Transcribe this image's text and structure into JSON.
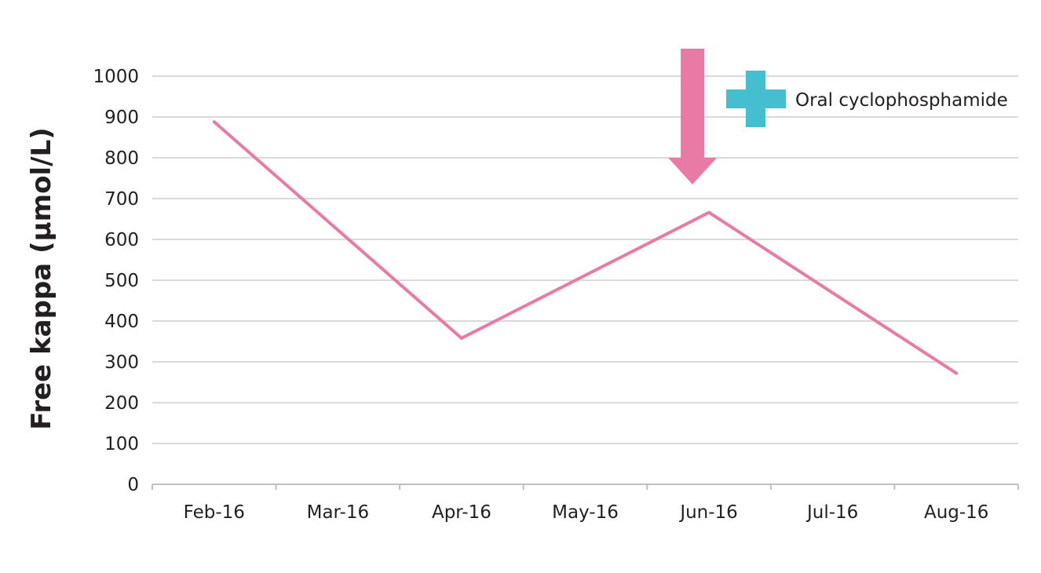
{
  "chart_data": {
    "type": "line",
    "categories": [
      "Feb-16",
      "Mar-16",
      "Apr-16",
      "May-16",
      "Jun-16",
      "Jul-16",
      "Aug-16"
    ],
    "x": [
      "Feb-16",
      "Apr-16",
      "Jun-16",
      "Aug-16"
    ],
    "series": [
      {
        "values": [
          888,
          358,
          666,
          272
        ],
        "color": "#e97aa6"
      }
    ],
    "ylabel": "Free kappa (μmol/L)",
    "xlabel": "",
    "ylim": [
      0,
      1000
    ],
    "yticks": [
      0,
      100,
      200,
      300,
      400,
      500,
      600,
      700,
      800,
      900,
      1000
    ],
    "grid": true,
    "annotations": [
      {
        "type": "arrow-down",
        "at": "Jun-16",
        "color": "#e97aa6"
      },
      {
        "type": "legend-marker",
        "icon": "plus-icon",
        "label": "Oral cyclophosphamide",
        "color": "#45bfd0",
        "placement": "top-right"
      }
    ]
  }
}
